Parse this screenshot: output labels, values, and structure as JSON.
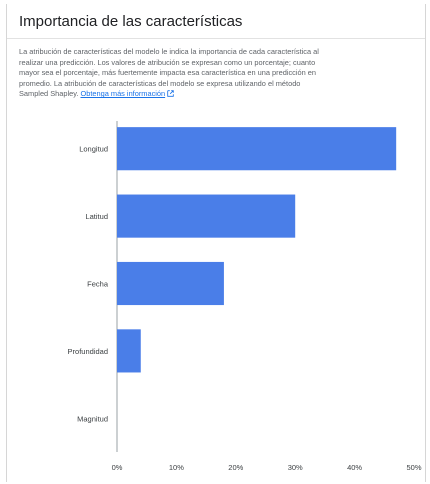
{
  "panel": {
    "title": "Importancia de las características",
    "description": "La atribución de características del modelo le indica la importancia de cada característica al realizar una predicción. Los valores de atribución se expresan como un porcentaje; cuanto mayor sea el porcentaje, más fuertemente impacta esa característica en una predicción en promedio. La atribución de características del modelo se expresa utilizando el método Sampled Shapley.",
    "learn_more_link": "Obtenga más información",
    "link_icon": "external-link-icon"
  },
  "colors": {
    "bar": "#4a7ee8",
    "link": "#1a73e8",
    "title": "#202124"
  },
  "chart_data": {
    "type": "bar",
    "orientation": "horizontal",
    "categories": [
      "Longitud",
      "Latitud",
      "Fecha",
      "Profundidad",
      "Magnitud"
    ],
    "values": [
      47,
      30,
      18,
      4,
      0
    ],
    "xlim": [
      0,
      50
    ],
    "xticks": [
      0,
      10,
      20,
      30,
      40,
      50
    ],
    "tick_labels": [
      "0%",
      "10%",
      "20%",
      "30%",
      "40%",
      "50%"
    ],
    "unit": "%",
    "grid": false
  }
}
